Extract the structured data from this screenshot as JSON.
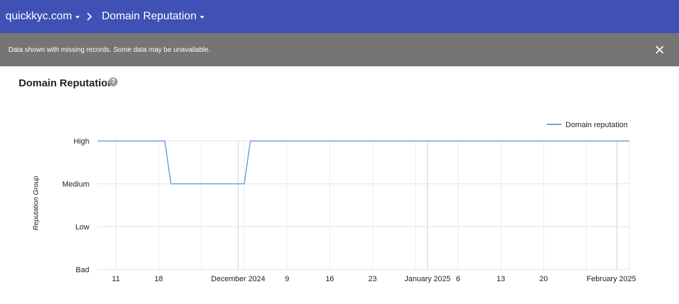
{
  "header": {
    "domain_label": "quickkyc.com",
    "page_label": "Domain Reputation",
    "bar_color": "#3f51b5"
  },
  "banner": {
    "message": "Data shown with missing records. Some data may be unavailable.",
    "close_icon": "close-icon"
  },
  "card": {
    "title": "Domain Reputation",
    "help_icon": "help-circle-icon"
  },
  "chart_data": {
    "type": "line",
    "title": "",
    "xlabel": "",
    "ylabel": "Reputation Group",
    "categories_y": [
      "Bad",
      "Low",
      "Medium",
      "High"
    ],
    "x_tick_labels": [
      {
        "date": "2024-11-11",
        "label": "11"
      },
      {
        "date": "2024-11-18",
        "label": "18"
      },
      {
        "date": "2024-12-01",
        "label": "December 2024"
      },
      {
        "date": "2024-12-09",
        "label": "9"
      },
      {
        "date": "2024-12-16",
        "label": "16"
      },
      {
        "date": "2024-12-23",
        "label": "23"
      },
      {
        "date": "2025-01-01",
        "label": "January 2025"
      },
      {
        "date": "2025-01-06",
        "label": "6"
      },
      {
        "date": "2025-01-13",
        "label": "13"
      },
      {
        "date": "2025-01-20",
        "label": "20"
      },
      {
        "date": "2025-02-01",
        "label": "February 2025"
      }
    ],
    "xlim": [
      "2024-11-08",
      "2025-02-03"
    ],
    "legend": {
      "position": "top-right"
    },
    "series": [
      {
        "name": "Domain reputation",
        "color": "#6f9fdf",
        "points": [
          {
            "x": "2024-11-08",
            "y": "High"
          },
          {
            "x": "2024-11-19",
            "y": "High"
          },
          {
            "x": "2024-11-20",
            "y": "Medium"
          },
          {
            "x": "2024-12-02",
            "y": "Medium"
          },
          {
            "x": "2024-12-03",
            "y": "High"
          },
          {
            "x": "2025-02-03",
            "y": "High"
          }
        ]
      }
    ],
    "grid": true
  }
}
